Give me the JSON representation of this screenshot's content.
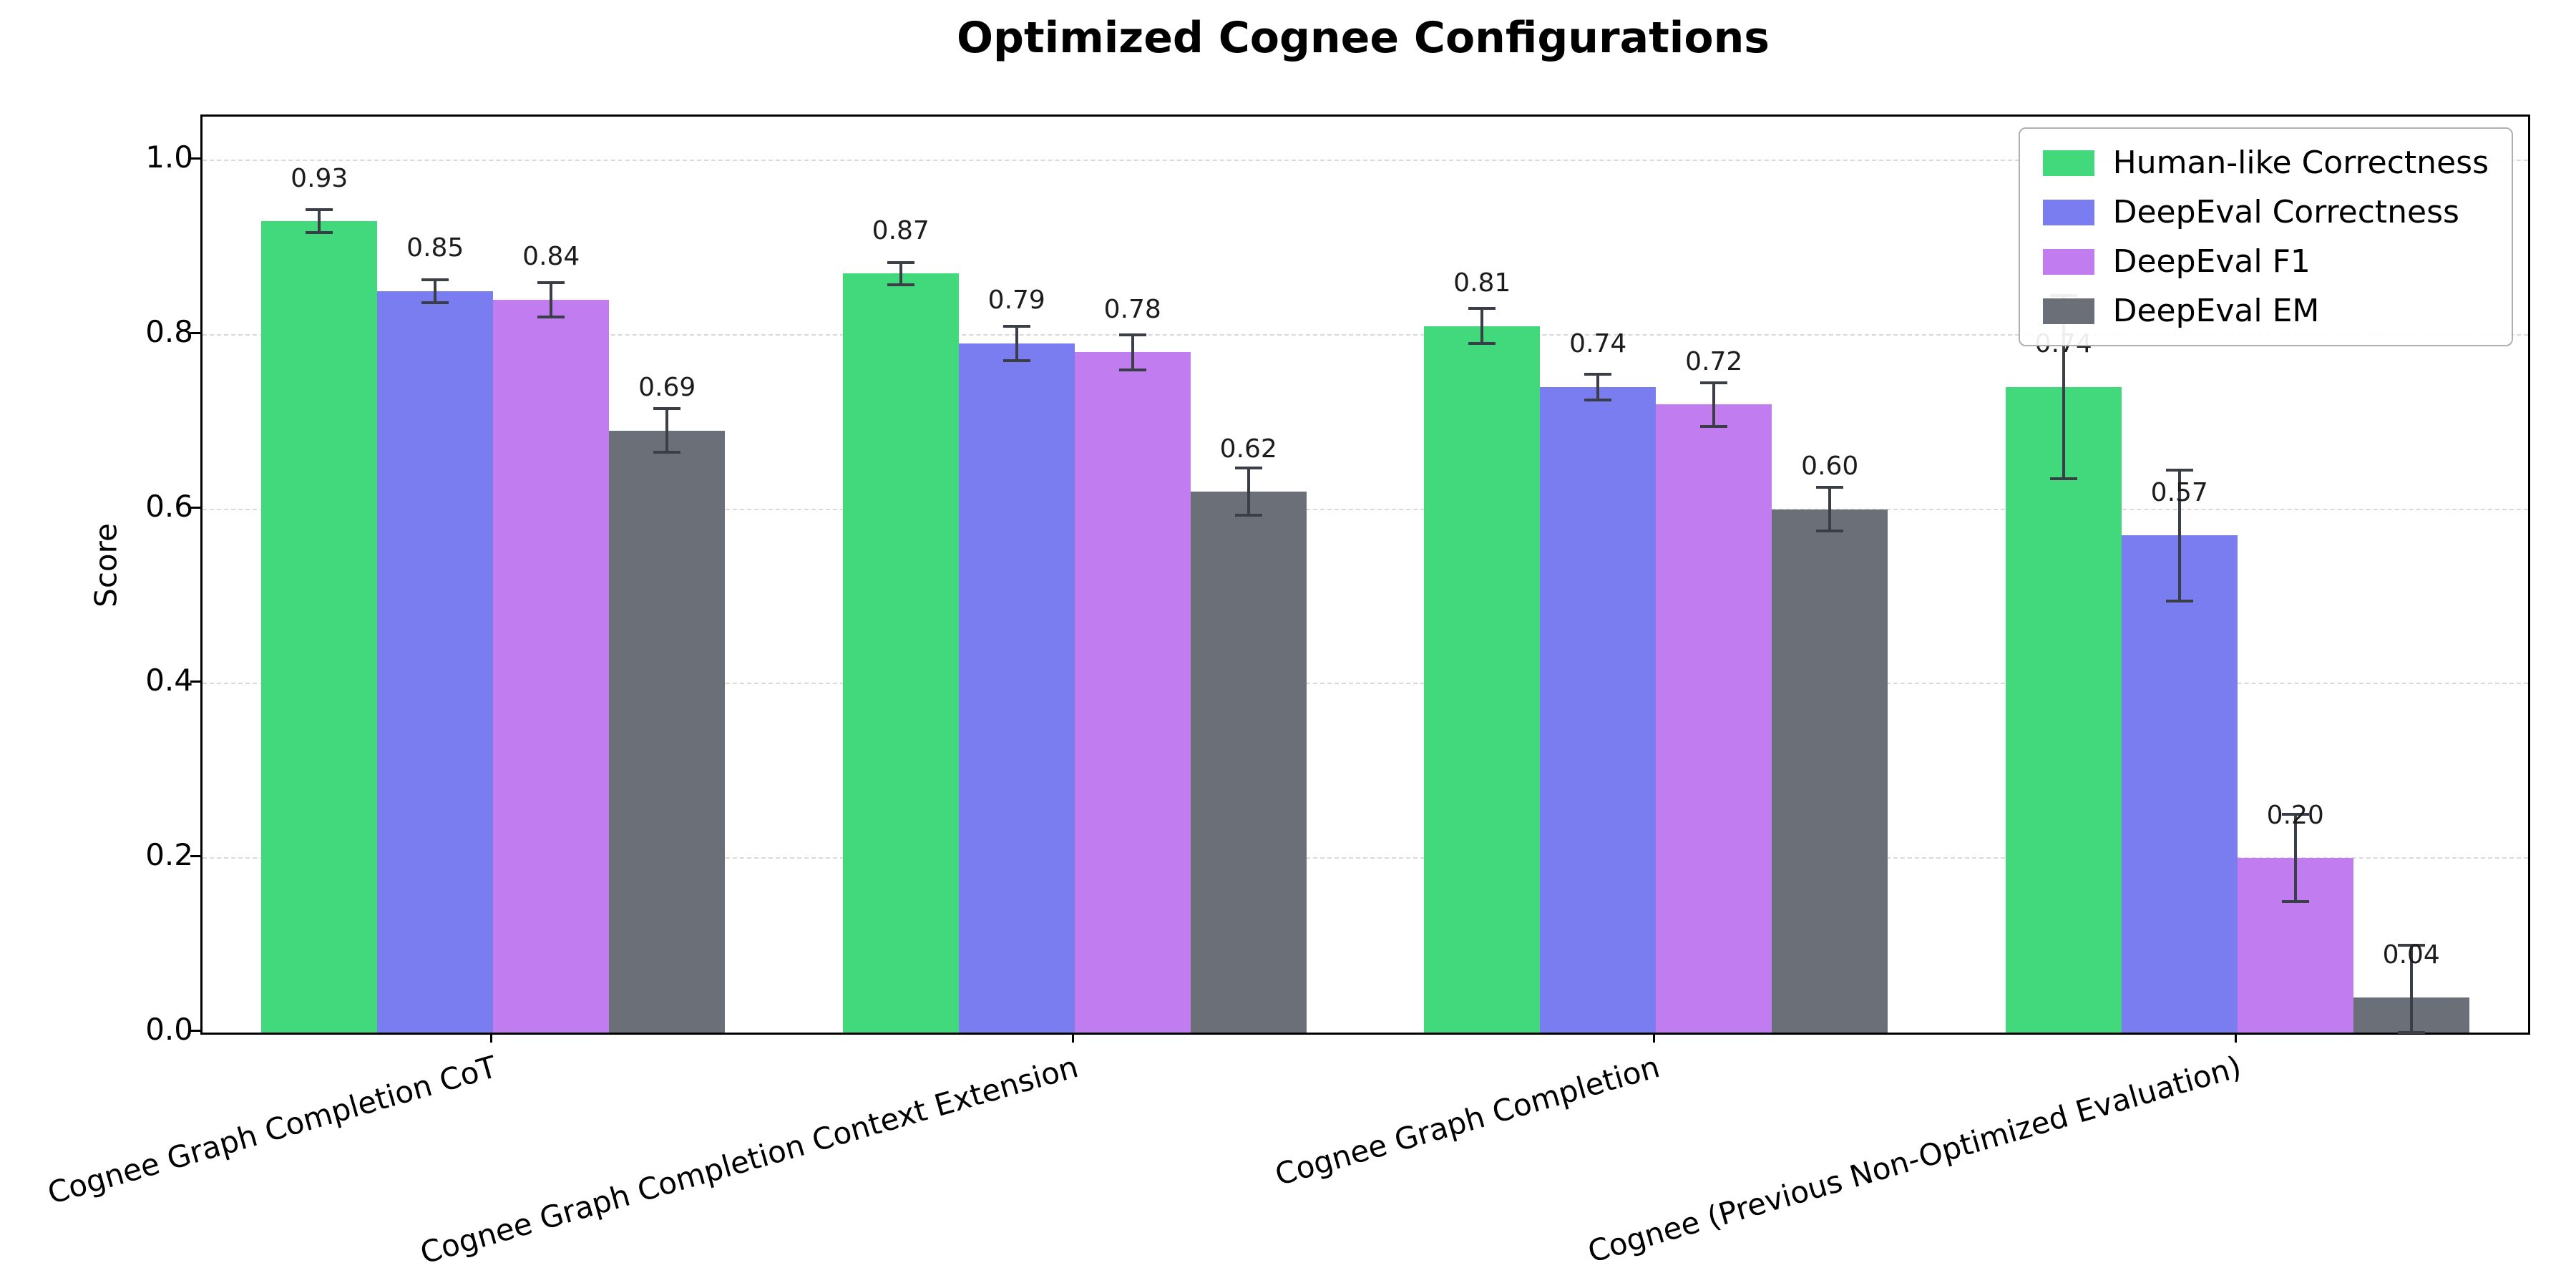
{
  "title": "Optimized Cognee Configurations",
  "chart_data": {
    "type": "bar",
    "title": "Optimized Cognee Configurations",
    "ylabel": "Score",
    "ylim": [
      0,
      1.05
    ],
    "yticks": [
      0.0,
      0.2,
      0.4,
      0.6,
      0.8,
      1.0
    ],
    "grid": "horizontal-dashed",
    "legend_position": "upper right",
    "categories": [
      "Cognee Graph Completion CoT",
      "Cognee Graph Completion Context Extension",
      "Cognee Graph Completion",
      "Cognee (Previous Non-Optimized Evaluation)"
    ],
    "series": [
      {
        "name": "Human-like Correctness",
        "color": "#42d97d",
        "values": [
          0.93,
          0.87,
          0.81,
          0.74
        ],
        "errors": [
          0.013,
          0.013,
          0.02,
          0.105
        ],
        "labels": [
          "0.93",
          "0.87",
          "0.81",
          "0.74"
        ]
      },
      {
        "name": "DeepEval Correctness",
        "color": "#7a7df0",
        "values": [
          0.85,
          0.79,
          0.74,
          0.57
        ],
        "errors": [
          0.013,
          0.02,
          0.015,
          0.075
        ],
        "labels": [
          "0.85",
          "0.79",
          "0.74",
          "0.57"
        ]
      },
      {
        "name": "DeepEval F1",
        "color": "#c17cf0",
        "values": [
          0.84,
          0.78,
          0.72,
          0.2
        ],
        "errors": [
          0.02,
          0.02,
          0.025,
          0.05
        ],
        "labels": [
          "0.84",
          "0.78",
          "0.72",
          "0.20"
        ]
      },
      {
        "name": "DeepEval EM",
        "color": "#6a6f78",
        "values": [
          0.69,
          0.62,
          0.6,
          0.04
        ],
        "errors": [
          0.025,
          0.027,
          0.025,
          0.06
        ],
        "labels": [
          "0.69",
          "0.62",
          "0.60",
          "0.04"
        ]
      }
    ],
    "error_color": "#3a3e46",
    "grid_color": "#d9d9d9",
    "axis_color": "#000000"
  }
}
